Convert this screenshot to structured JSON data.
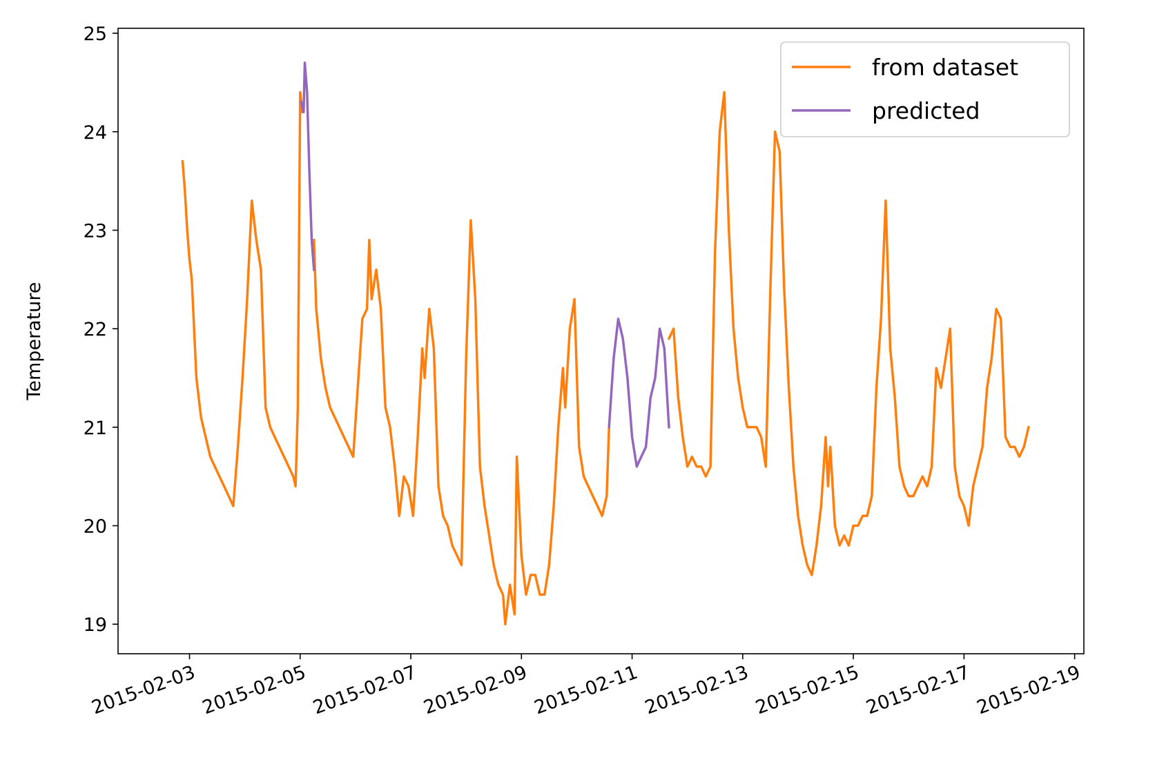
{
  "chart_data": {
    "type": "line",
    "title": "",
    "xlabel": "",
    "ylabel": "Temperature",
    "x_ticks": [
      "2015-02-03",
      "2015-02-05",
      "2015-02-07",
      "2015-02-09",
      "2015-02-11",
      "2015-02-13",
      "2015-02-15",
      "2015-02-17",
      "2015-02-19"
    ],
    "y_ticks": [
      19,
      20,
      21,
      22,
      23,
      24,
      25
    ],
    "xlim": [
      "2015-02-01T17:00",
      "2015-02-19T04:00"
    ],
    "ylim": [
      18.7,
      25.05
    ],
    "legend": {
      "position": "top-right"
    },
    "grid": false,
    "x_tick_rotation": 20,
    "colors": {
      "from_dataset": "#ff7f0e",
      "predicted": "#9467bd"
    },
    "series": [
      {
        "name": "from dataset",
        "color": "#ff7f0e",
        "segments": [
          [
            [
              "2015-02-02T21:00",
              23.7
            ],
            [
              "2015-02-02T22:00",
              23.4
            ],
            [
              "2015-02-02T23:00",
              23.0
            ],
            [
              "2015-02-03T00:00",
              22.7
            ],
            [
              "2015-02-03T01:00",
              22.5
            ],
            [
              "2015-02-03T03:00",
              21.5
            ],
            [
              "2015-02-03T05:00",
              21.1
            ],
            [
              "2015-02-03T07:00",
              20.9
            ],
            [
              "2015-02-03T09:00",
              20.7
            ],
            [
              "2015-02-03T11:00",
              20.6
            ],
            [
              "2015-02-03T13:00",
              20.5
            ],
            [
              "2015-02-03T15:00",
              20.4
            ],
            [
              "2015-02-03T17:00",
              20.3
            ],
            [
              "2015-02-03T19:00",
              20.2
            ],
            [
              "2015-02-03T21:00",
              20.8
            ],
            [
              "2015-02-03T23:00",
              21.5
            ],
            [
              "2015-02-04T01:00",
              22.3
            ],
            [
              "2015-02-04T03:00",
              23.3
            ],
            [
              "2015-02-04T05:00",
              22.9
            ],
            [
              "2015-02-04T07:00",
              22.6
            ],
            [
              "2015-02-04T09:00",
              21.2
            ],
            [
              "2015-02-04T11:00",
              21.0
            ],
            [
              "2015-02-04T13:00",
              20.9
            ],
            [
              "2015-02-04T15:00",
              20.8
            ],
            [
              "2015-02-04T17:00",
              20.7
            ],
            [
              "2015-02-04T19:00",
              20.6
            ],
            [
              "2015-02-04T21:00",
              20.5
            ],
            [
              "2015-02-04T22:00",
              20.4
            ],
            [
              "2015-02-04T23:00",
              21.2
            ],
            [
              "2015-02-05T00:00",
              24.4
            ],
            [
              "2015-02-05T01:00",
              24.2
            ]
          ],
          [
            [
              "2015-02-05T06:00",
              22.9
            ],
            [
              "2015-02-05T07:00",
              22.2
            ],
            [
              "2015-02-05T09:00",
              21.7
            ],
            [
              "2015-02-05T11:00",
              21.4
            ],
            [
              "2015-02-05T13:00",
              21.2
            ],
            [
              "2015-02-05T15:00",
              21.1
            ],
            [
              "2015-02-05T17:00",
              21.0
            ],
            [
              "2015-02-05T19:00",
              20.9
            ],
            [
              "2015-02-05T21:00",
              20.8
            ],
            [
              "2015-02-05T23:00",
              20.7
            ],
            [
              "2015-02-06T01:00",
              21.4
            ],
            [
              "2015-02-06T03:00",
              22.1
            ],
            [
              "2015-02-06T05:00",
              22.2
            ],
            [
              "2015-02-06T06:00",
              22.9
            ],
            [
              "2015-02-06T07:00",
              22.3
            ],
            [
              "2015-02-06T09:00",
              22.6
            ],
            [
              "2015-02-06T11:00",
              22.2
            ],
            [
              "2015-02-06T13:00",
              21.2
            ],
            [
              "2015-02-06T15:00",
              21.0
            ],
            [
              "2015-02-06T17:00",
              20.6
            ],
            [
              "2015-02-06T19:00",
              20.1
            ],
            [
              "2015-02-06T21:00",
              20.5
            ],
            [
              "2015-02-06T23:00",
              20.4
            ],
            [
              "2015-02-07T01:00",
              20.1
            ],
            [
              "2015-02-07T03:00",
              20.9
            ],
            [
              "2015-02-07T05:00",
              21.8
            ],
            [
              "2015-02-07T06:00",
              21.5
            ],
            [
              "2015-02-07T08:00",
              22.2
            ],
            [
              "2015-02-07T10:00",
              21.8
            ],
            [
              "2015-02-07T12:00",
              20.4
            ],
            [
              "2015-02-07T14:00",
              20.1
            ],
            [
              "2015-02-07T16:00",
              20.0
            ],
            [
              "2015-02-07T18:00",
              19.8
            ],
            [
              "2015-02-07T20:00",
              19.7
            ],
            [
              "2015-02-07T22:00",
              19.6
            ],
            [
              "2015-02-08T00:00",
              21.7
            ],
            [
              "2015-02-08T02:00",
              23.1
            ],
            [
              "2015-02-08T04:00",
              22.3
            ],
            [
              "2015-02-08T06:00",
              20.6
            ],
            [
              "2015-02-08T08:00",
              20.2
            ],
            [
              "2015-02-08T10:00",
              19.9
            ],
            [
              "2015-02-08T12:00",
              19.6
            ],
            [
              "2015-02-08T14:00",
              19.4
            ],
            [
              "2015-02-08T16:00",
              19.3
            ],
            [
              "2015-02-08T17:00",
              19.0
            ],
            [
              "2015-02-08T19:00",
              19.4
            ],
            [
              "2015-02-08T21:00",
              19.1
            ],
            [
              "2015-02-08T22:00",
              20.7
            ],
            [
              "2015-02-09T00:00",
              19.7
            ],
            [
              "2015-02-09T02:00",
              19.3
            ],
            [
              "2015-02-09T04:00",
              19.5
            ],
            [
              "2015-02-09T06:00",
              19.5
            ],
            [
              "2015-02-09T08:00",
              19.3
            ],
            [
              "2015-02-09T10:00",
              19.3
            ],
            [
              "2015-02-09T12:00",
              19.6
            ],
            [
              "2015-02-09T14:00",
              20.2
            ],
            [
              "2015-02-09T16:00",
              21.0
            ],
            [
              "2015-02-09T18:00",
              21.6
            ],
            [
              "2015-02-09T19:00",
              21.2
            ],
            [
              "2015-02-09T21:00",
              22.0
            ],
            [
              "2015-02-09T23:00",
              22.3
            ],
            [
              "2015-02-10T01:00",
              20.8
            ],
            [
              "2015-02-10T03:00",
              20.5
            ],
            [
              "2015-02-10T05:00",
              20.4
            ],
            [
              "2015-02-10T07:00",
              20.3
            ],
            [
              "2015-02-10T09:00",
              20.2
            ],
            [
              "2015-02-10T11:00",
              20.1
            ],
            [
              "2015-02-10T13:00",
              20.3
            ],
            [
              "2015-02-10T14:00",
              21.0
            ]
          ],
          [
            [
              "2015-02-11T16:00",
              21.9
            ],
            [
              "2015-02-11T18:00",
              22.0
            ],
            [
              "2015-02-11T20:00",
              21.3
            ],
            [
              "2015-02-11T22:00",
              20.9
            ],
            [
              "2015-02-12T00:00",
              20.6
            ],
            [
              "2015-02-12T02:00",
              20.7
            ],
            [
              "2015-02-12T04:00",
              20.6
            ],
            [
              "2015-02-12T06:00",
              20.6
            ],
            [
              "2015-02-12T08:00",
              20.5
            ],
            [
              "2015-02-12T10:00",
              20.6
            ],
            [
              "2015-02-12T12:00",
              22.8
            ],
            [
              "2015-02-12T14:00",
              24.0
            ],
            [
              "2015-02-12T16:00",
              24.4
            ],
            [
              "2015-02-12T18:00",
              23.0
            ],
            [
              "2015-02-12T20:00",
              22.0
            ],
            [
              "2015-02-12T22:00",
              21.5
            ],
            [
              "2015-02-13T00:00",
              21.2
            ],
            [
              "2015-02-13T02:00",
              21.0
            ],
            [
              "2015-02-13T04:00",
              21.0
            ],
            [
              "2015-02-13T06:00",
              21.0
            ],
            [
              "2015-02-13T08:00",
              20.9
            ],
            [
              "2015-02-13T10:00",
              20.6
            ],
            [
              "2015-02-13T12:00",
              22.4
            ],
            [
              "2015-02-13T14:00",
              24.0
            ],
            [
              "2015-02-13T16:00",
              23.8
            ],
            [
              "2015-02-13T18:00",
              22.4
            ],
            [
              "2015-02-13T20:00",
              21.4
            ],
            [
              "2015-02-13T22:00",
              20.6
            ],
            [
              "2015-02-14T00:00",
              20.1
            ],
            [
              "2015-02-14T02:00",
              19.8
            ],
            [
              "2015-02-14T04:00",
              19.6
            ],
            [
              "2015-02-14T06:00",
              19.5
            ],
            [
              "2015-02-14T08:00",
              19.8
            ],
            [
              "2015-02-14T10:00",
              20.2
            ],
            [
              "2015-02-14T12:00",
              20.9
            ],
            [
              "2015-02-14T13:00",
              20.4
            ],
            [
              "2015-02-14T14:00",
              20.8
            ],
            [
              "2015-02-14T16:00",
              20.0
            ],
            [
              "2015-02-14T18:00",
              19.8
            ],
            [
              "2015-02-14T20:00",
              19.9
            ],
            [
              "2015-02-14T22:00",
              19.8
            ],
            [
              "2015-02-15T00:00",
              20.0
            ],
            [
              "2015-02-15T02:00",
              20.0
            ],
            [
              "2015-02-15T04:00",
              20.1
            ],
            [
              "2015-02-15T06:00",
              20.1
            ],
            [
              "2015-02-15T08:00",
              20.3
            ],
            [
              "2015-02-15T10:00",
              21.4
            ],
            [
              "2015-02-15T12:00",
              22.1
            ],
            [
              "2015-02-15T14:00",
              23.3
            ],
            [
              "2015-02-15T16:00",
              21.8
            ],
            [
              "2015-02-15T18:00",
              21.3
            ],
            [
              "2015-02-15T20:00",
              20.6
            ],
            [
              "2015-02-15T22:00",
              20.4
            ],
            [
              "2015-02-16T00:00",
              20.3
            ],
            [
              "2015-02-16T02:00",
              20.3
            ],
            [
              "2015-02-16T04:00",
              20.4
            ],
            [
              "2015-02-16T06:00",
              20.5
            ],
            [
              "2015-02-16T08:00",
              20.4
            ],
            [
              "2015-02-16T10:00",
              20.6
            ],
            [
              "2015-02-16T12:00",
              21.6
            ],
            [
              "2015-02-16T14:00",
              21.4
            ],
            [
              "2015-02-16T16:00",
              21.7
            ],
            [
              "2015-02-16T18:00",
              22.0
            ],
            [
              "2015-02-16T20:00",
              20.6
            ],
            [
              "2015-02-16T22:00",
              20.3
            ],
            [
              "2015-02-17T00:00",
              20.2
            ],
            [
              "2015-02-17T02:00",
              20.0
            ],
            [
              "2015-02-17T04:00",
              20.4
            ],
            [
              "2015-02-17T06:00",
              20.6
            ],
            [
              "2015-02-17T08:00",
              20.8
            ],
            [
              "2015-02-17T10:00",
              21.4
            ],
            [
              "2015-02-17T12:00",
              21.7
            ],
            [
              "2015-02-17T14:00",
              22.2
            ],
            [
              "2015-02-17T16:00",
              22.1
            ],
            [
              "2015-02-17T18:00",
              20.9
            ],
            [
              "2015-02-17T20:00",
              20.8
            ],
            [
              "2015-02-17T22:00",
              20.8
            ],
            [
              "2015-02-18T00:00",
              20.7
            ],
            [
              "2015-02-18T02:00",
              20.8
            ],
            [
              "2015-02-18T04:00",
              21.0
            ]
          ]
        ]
      },
      {
        "name": "predicted",
        "color": "#9467bd",
        "segments": [
          [
            [
              "2015-02-05T00:30",
              24.3
            ],
            [
              "2015-02-05T01:30",
              24.2
            ],
            [
              "2015-02-05T02:00",
              24.7
            ],
            [
              "2015-02-05T03:00",
              24.4
            ],
            [
              "2015-02-05T04:00",
              23.6
            ],
            [
              "2015-02-05T05:00",
              22.9
            ],
            [
              "2015-02-05T06:00",
              22.6
            ]
          ],
          [
            [
              "2015-02-10T14:00",
              21.0
            ],
            [
              "2015-02-10T16:00",
              21.7
            ],
            [
              "2015-02-10T18:00",
              22.1
            ],
            [
              "2015-02-10T20:00",
              21.9
            ],
            [
              "2015-02-10T22:00",
              21.5
            ],
            [
              "2015-02-11T00:00",
              20.9
            ],
            [
              "2015-02-11T02:00",
              20.6
            ],
            [
              "2015-02-11T04:00",
              20.7
            ],
            [
              "2015-02-11T06:00",
              20.8
            ],
            [
              "2015-02-11T08:00",
              21.3
            ],
            [
              "2015-02-11T10:00",
              21.5
            ],
            [
              "2015-02-11T12:00",
              22.0
            ],
            [
              "2015-02-11T14:00",
              21.8
            ],
            [
              "2015-02-11T16:00",
              21.0
            ]
          ]
        ]
      }
    ]
  }
}
